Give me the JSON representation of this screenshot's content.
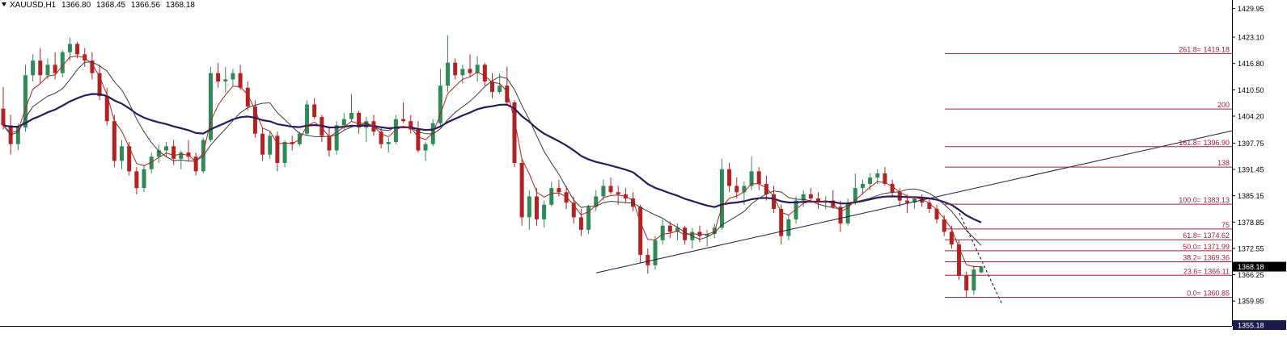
{
  "header": {
    "symbol": "XAUUSD,H1",
    "open": "1366.80",
    "high": "1368.45",
    "low": "1366.56",
    "close": "1368.18"
  },
  "chart_data": {
    "type": "candlestick",
    "price_axis": {
      "ticks": [
        "1429.95",
        "1423.10",
        "1416.80",
        "1410.50",
        "1404.20",
        "1397.75",
        "1391.45",
        "1385.15",
        "1378.85",
        "1372.55",
        "1366.25",
        "1359.95"
      ],
      "ylim": [
        1354.0,
        1432.0
      ],
      "current_price": "1368.18",
      "bottom_label": "1355.18"
    },
    "colors": {
      "bull": "#2e8b57",
      "bear": "#b22222",
      "ma_fast": "#b22222",
      "ma_mid": "#3a3a3a",
      "ma_slow": "#2b1a5e",
      "fib": "#a0203a",
      "trend": "#1a1a4a"
    },
    "fibonacci": [
      {
        "label": "261.8= 1419.18",
        "price": 1419.18
      },
      {
        "label": "200",
        "price": 1405.9
      },
      {
        "label": "161.8= 1396.90",
        "price": 1396.9
      },
      {
        "label": "138",
        "price": 1392.0
      },
      {
        "label": "100.0= 1383.13",
        "price": 1383.13
      },
      {
        "label": "75",
        "price": 1377.2
      },
      {
        "label": "61.8= 1374.62",
        "price": 1374.62
      },
      {
        "label": "50.0= 1371.99",
        "price": 1371.99
      },
      {
        "label": "38.2= 1369.36",
        "price": 1369.36
      },
      {
        "label": "23.6= 1366.11",
        "price": 1366.11
      },
      {
        "label": "0.0= 1360.85",
        "price": 1360.85
      }
    ],
    "trendline": {
      "start_price": 1366.7,
      "end_price": 1400.7
    },
    "candles": [
      [
        1406.0,
        1411.2,
        1401.0,
        1402.0
      ],
      [
        1402.0,
        1404.5,
        1395.0,
        1397.5
      ],
      [
        1397.5,
        1402.5,
        1396.0,
        1401.5
      ],
      [
        1401.5,
        1416.5,
        1400.5,
        1414.0
      ],
      [
        1414.0,
        1419.0,
        1412.5,
        1417.5
      ],
      [
        1417.5,
        1420.5,
        1412.0,
        1414.0
      ],
      [
        1414.0,
        1418.0,
        1413.0,
        1416.5
      ],
      [
        1416.5,
        1419.5,
        1413.0,
        1414.5
      ],
      [
        1414.5,
        1420.0,
        1413.5,
        1419.5
      ],
      [
        1419.5,
        1423.0,
        1417.5,
        1421.5
      ],
      [
        1421.5,
        1422.0,
        1418.0,
        1419.0
      ],
      [
        1419.0,
        1420.5,
        1416.0,
        1417.5
      ],
      [
        1417.5,
        1419.5,
        1413.0,
        1414.5
      ],
      [
        1414.5,
        1416.5,
        1408.0,
        1409.0
      ],
      [
        1409.0,
        1411.0,
        1402.0,
        1403.0
      ],
      [
        1403.0,
        1404.5,
        1392.0,
        1393.5
      ],
      [
        1393.5,
        1398.5,
        1391.5,
        1397.0
      ],
      [
        1397.0,
        1398.0,
        1390.0,
        1391.0
      ],
      [
        1391.0,
        1392.0,
        1385.5,
        1387.0
      ],
      [
        1387.0,
        1392.5,
        1386.0,
        1391.5
      ],
      [
        1391.5,
        1395.5,
        1390.5,
        1394.5
      ],
      [
        1394.5,
        1397.5,
        1393.0,
        1396.0
      ],
      [
        1396.0,
        1398.0,
        1394.5,
        1397.0
      ],
      [
        1397.0,
        1398.5,
        1392.5,
        1394.0
      ],
      [
        1394.0,
        1396.0,
        1391.5,
        1395.5
      ],
      [
        1395.5,
        1398.5,
        1393.5,
        1394.5
      ],
      [
        1394.5,
        1395.5,
        1390.0,
        1391.0
      ],
      [
        1391.0,
        1399.0,
        1390.5,
        1398.5
      ],
      [
        1398.5,
        1416.0,
        1398.0,
        1414.5
      ],
      [
        1414.5,
        1417.0,
        1411.0,
        1412.5
      ],
      [
        1412.5,
        1416.0,
        1410.0,
        1413.0
      ],
      [
        1413.0,
        1415.5,
        1411.5,
        1414.5
      ],
      [
        1414.5,
        1416.5,
        1410.5,
        1411.0
      ],
      [
        1411.0,
        1412.5,
        1405.5,
        1406.5
      ],
      [
        1406.5,
        1408.0,
        1399.0,
        1400.0
      ],
      [
        1400.0,
        1401.5,
        1393.5,
        1395.0
      ],
      [
        1395.0,
        1400.5,
        1394.0,
        1399.5
      ],
      [
        1399.5,
        1400.5,
        1391.0,
        1393.0
      ],
      [
        1393.0,
        1398.5,
        1392.0,
        1398.0
      ],
      [
        1398.0,
        1399.5,
        1396.0,
        1397.5
      ],
      [
        1397.5,
        1400.5,
        1397.0,
        1400.0
      ],
      [
        1400.0,
        1408.0,
        1399.5,
        1407.0
      ],
      [
        1407.0,
        1408.5,
        1403.5,
        1404.0
      ],
      [
        1404.0,
        1404.5,
        1398.0,
        1399.5
      ],
      [
        1399.5,
        1401.5,
        1394.5,
        1396.0
      ],
      [
        1396.0,
        1403.0,
        1395.0,
        1402.0
      ],
      [
        1402.0,
        1405.0,
        1401.0,
        1403.5
      ],
      [
        1403.5,
        1409.5,
        1403.0,
        1405.0
      ],
      [
        1405.0,
        1405.5,
        1400.0,
        1401.5
      ],
      [
        1401.5,
        1404.0,
        1398.0,
        1403.0
      ],
      [
        1403.0,
        1404.5,
        1399.5,
        1400.5
      ],
      [
        1400.5,
        1401.5,
        1396.5,
        1397.5
      ],
      [
        1397.5,
        1399.0,
        1395.5,
        1398.0
      ],
      [
        1398.0,
        1404.5,
        1397.5,
        1403.5
      ],
      [
        1403.5,
        1407.5,
        1402.5,
        1403.0
      ],
      [
        1403.0,
        1404.5,
        1400.0,
        1401.0
      ],
      [
        1401.0,
        1403.0,
        1395.5,
        1396.0
      ],
      [
        1396.0,
        1398.0,
        1393.5,
        1397.5
      ],
      [
        1397.5,
        1403.5,
        1397.0,
        1402.5
      ],
      [
        1402.5,
        1415.5,
        1402.0,
        1411.5
      ],
      [
        1411.5,
        1423.5,
        1410.0,
        1417.0
      ],
      [
        1417.0,
        1418.0,
        1413.0,
        1414.0
      ],
      [
        1414.0,
        1416.5,
        1412.0,
        1415.5
      ],
      [
        1415.5,
        1419.0,
        1413.5,
        1414.5
      ],
      [
        1414.5,
        1418.5,
        1412.5,
        1416.5
      ],
      [
        1416.5,
        1417.0,
        1411.5,
        1412.5
      ],
      [
        1412.5,
        1414.5,
        1408.5,
        1410.0
      ],
      [
        1410.0,
        1414.5,
        1409.5,
        1411.5
      ],
      [
        1411.5,
        1416.0,
        1407.0,
        1407.5
      ],
      [
        1407.5,
        1408.0,
        1392.0,
        1393.0
      ],
      [
        1393.0,
        1394.0,
        1378.0,
        1380.0
      ],
      [
        1380.0,
        1386.5,
        1377.0,
        1385.0
      ],
      [
        1385.0,
        1387.0,
        1378.0,
        1379.5
      ],
      [
        1379.5,
        1384.0,
        1377.5,
        1383.0
      ],
      [
        1383.0,
        1388.5,
        1382.5,
        1387.0
      ],
      [
        1387.0,
        1389.0,
        1385.0,
        1386.0
      ],
      [
        1386.0,
        1387.5,
        1382.0,
        1383.5
      ],
      [
        1383.5,
        1385.0,
        1378.5,
        1380.0
      ],
      [
        1380.0,
        1382.0,
        1375.5,
        1377.0
      ],
      [
        1377.0,
        1383.0,
        1376.0,
        1382.5
      ],
      [
        1382.5,
        1386.5,
        1381.5,
        1385.0
      ],
      [
        1385.0,
        1389.0,
        1384.0,
        1387.5
      ],
      [
        1387.5,
        1389.5,
        1385.5,
        1386.0
      ],
      [
        1386.0,
        1387.5,
        1383.0,
        1385.5
      ],
      [
        1385.5,
        1387.0,
        1383.5,
        1384.5
      ],
      [
        1384.5,
        1386.0,
        1381.5,
        1382.5
      ],
      [
        1382.5,
        1383.0,
        1369.0,
        1371.0
      ],
      [
        1371.0,
        1372.5,
        1366.5,
        1368.5
      ],
      [
        1368.5,
        1375.5,
        1367.5,
        1374.5
      ],
      [
        1374.5,
        1379.5,
        1373.5,
        1378.0
      ],
      [
        1378.0,
        1379.0,
        1375.0,
        1376.5
      ],
      [
        1376.5,
        1378.5,
        1374.5,
        1377.5
      ],
      [
        1377.5,
        1378.0,
        1373.5,
        1374.5
      ],
      [
        1374.5,
        1377.5,
        1372.5,
        1376.5
      ],
      [
        1376.5,
        1378.0,
        1374.0,
        1375.5
      ],
      [
        1375.5,
        1377.0,
        1373.0,
        1376.0
      ],
      [
        1376.0,
        1378.5,
        1375.0,
        1377.5
      ],
      [
        1377.5,
        1394.0,
        1377.0,
        1391.5
      ],
      [
        1391.5,
        1393.0,
        1386.0,
        1387.5
      ],
      [
        1387.5,
        1389.5,
        1384.5,
        1386.0
      ],
      [
        1386.0,
        1388.5,
        1383.0,
        1387.5
      ],
      [
        1387.5,
        1394.5,
        1386.5,
        1391.0
      ],
      [
        1391.0,
        1392.0,
        1386.5,
        1388.0
      ],
      [
        1388.0,
        1390.0,
        1384.0,
        1385.5
      ],
      [
        1385.5,
        1387.5,
        1381.0,
        1382.0
      ],
      [
        1382.0,
        1383.0,
        1373.5,
        1375.5
      ],
      [
        1375.5,
        1380.5,
        1374.5,
        1379.5
      ],
      [
        1379.5,
        1385.0,
        1378.5,
        1384.0
      ],
      [
        1384.0,
        1386.5,
        1382.5,
        1385.5
      ],
      [
        1385.5,
        1387.0,
        1383.5,
        1384.5
      ],
      [
        1384.5,
        1386.0,
        1382.0,
        1383.5
      ],
      [
        1383.5,
        1385.0,
        1382.0,
        1384.0
      ],
      [
        1384.0,
        1386.5,
        1382.0,
        1382.5
      ],
      [
        1382.5,
        1384.0,
        1376.5,
        1378.5
      ],
      [
        1378.5,
        1384.5,
        1378.0,
        1383.5
      ],
      [
        1383.5,
        1390.5,
        1383.0,
        1387.0
      ],
      [
        1387.0,
        1389.0,
        1385.5,
        1388.0
      ],
      [
        1388.0,
        1390.5,
        1386.5,
        1389.5
      ],
      [
        1389.5,
        1391.5,
        1388.0,
        1390.5
      ],
      [
        1390.5,
        1392.0,
        1387.5,
        1388.0
      ],
      [
        1388.0,
        1389.0,
        1385.0,
        1386.0
      ],
      [
        1386.0,
        1387.0,
        1382.5,
        1384.0
      ],
      [
        1384.0,
        1385.5,
        1381.0,
        1383.5
      ],
      [
        1383.5,
        1385.0,
        1382.0,
        1384.5
      ],
      [
        1384.5,
        1385.5,
        1382.5,
        1383.5
      ],
      [
        1383.5,
        1384.5,
        1381.0,
        1382.0
      ],
      [
        1382.0,
        1383.0,
        1378.5,
        1379.5
      ],
      [
        1379.5,
        1380.5,
        1375.5,
        1376.5
      ],
      [
        1376.5,
        1378.0,
        1372.5,
        1373.5
      ],
      [
        1373.5,
        1374.5,
        1365.0,
        1366.0
      ],
      [
        1366.0,
        1367.0,
        1360.9,
        1362.5
      ],
      [
        1362.5,
        1368.5,
        1361.5,
        1367.5
      ],
      [
        1366.8,
        1368.45,
        1366.56,
        1368.18
      ]
    ]
  }
}
